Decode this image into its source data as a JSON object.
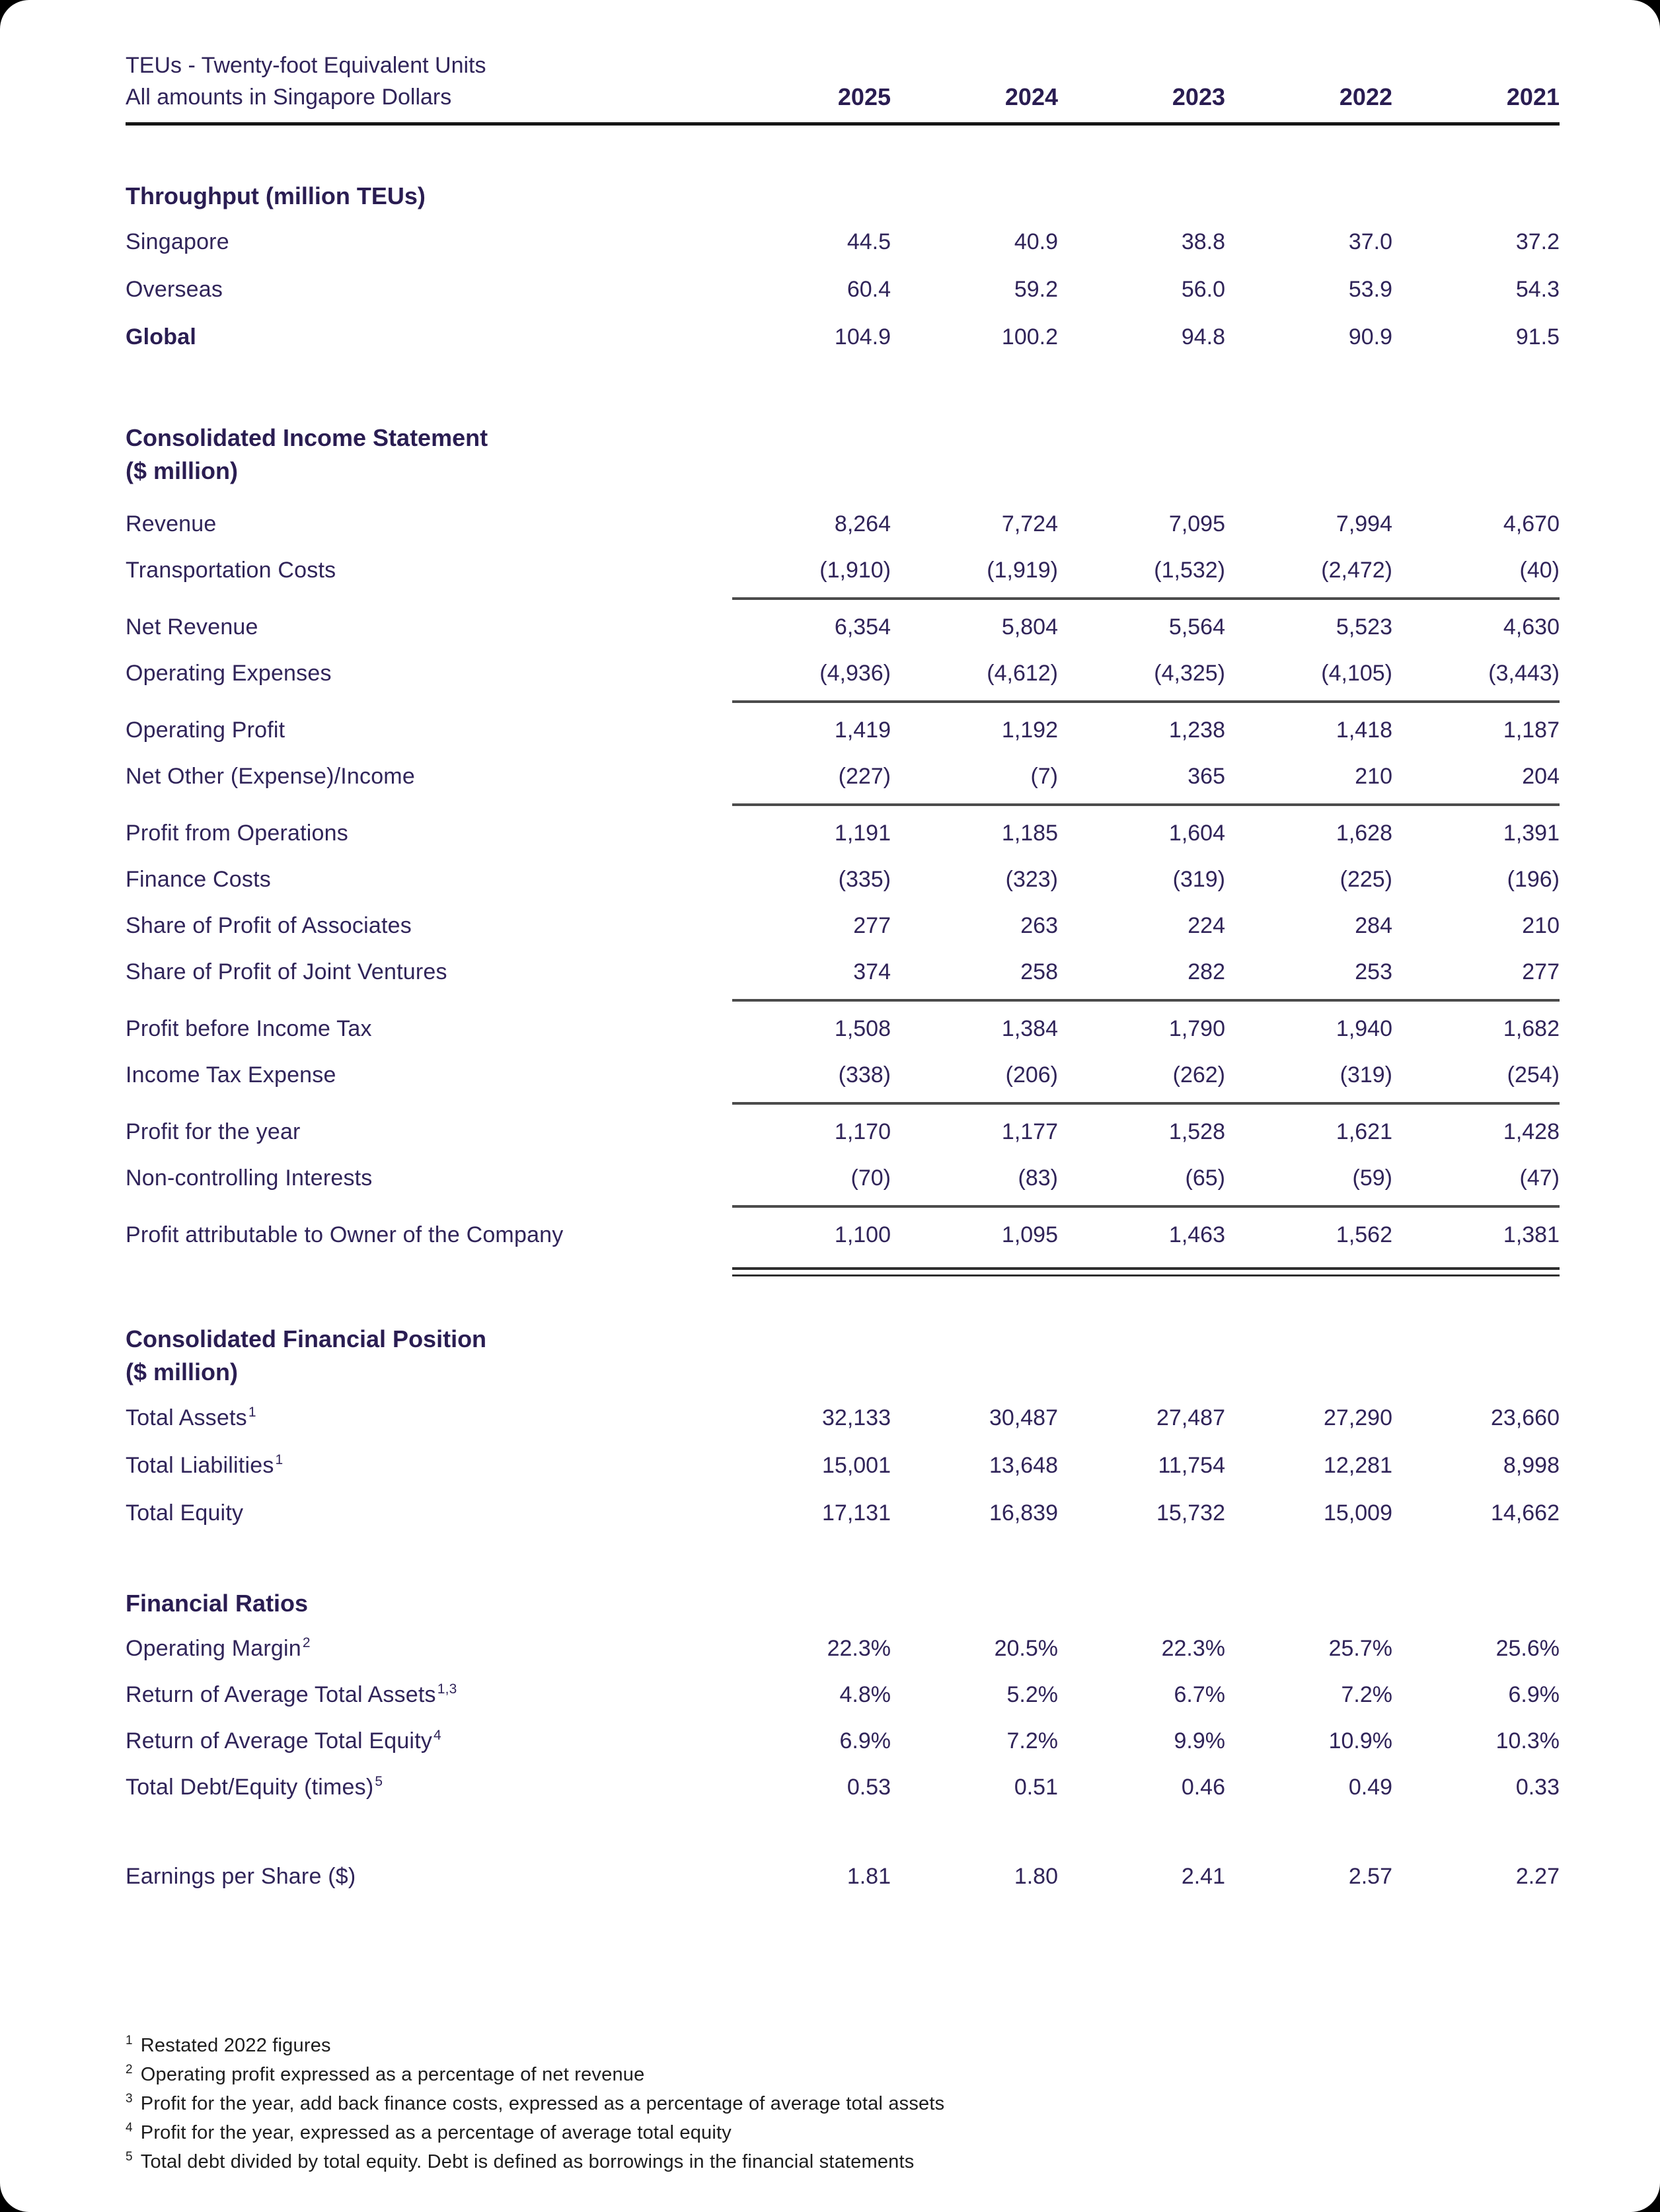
{
  "page": {
    "meta_line1": "TEUs - Twenty-foot Equivalent Units",
    "meta_line2": "All amounts in Singapore Dollars",
    "years": [
      "2025",
      "2024",
      "2023",
      "2022",
      "2021"
    ]
  },
  "colors": {
    "text_ink": "#302459",
    "heading_ink": "#2a1d52",
    "footnote_ink": "#1c1c1c",
    "header_rule": "#161616",
    "subtotal_rule": "#4c4c4c",
    "page_background": "#ffffff",
    "outer_background": "#000000"
  },
  "sections": {
    "throughput": {
      "title": "Throughput (million TEUs)",
      "rows": [
        {
          "label": "Singapore",
          "bold": false,
          "values": [
            "44.5",
            "40.9",
            "38.8",
            "37.0",
            "37.2"
          ]
        },
        {
          "label": "Overseas",
          "bold": false,
          "values": [
            "60.4",
            "59.2",
            "56.0",
            "53.9",
            "54.3"
          ]
        },
        {
          "label": "Global",
          "bold": true,
          "values": [
            "104.9",
            "100.2",
            "94.8",
            "90.9",
            "91.5"
          ]
        }
      ]
    },
    "income": {
      "title": "Consolidated Income Statement",
      "subtitle": "($ million)",
      "rows": [
        {
          "label": "Revenue",
          "bold": false,
          "values": [
            "8,264",
            "7,724",
            "7,095",
            "7,994",
            "4,670"
          ]
        },
        {
          "label": "Transportation Costs",
          "bold": false,
          "values": [
            "(1,910)",
            "(1,919)",
            "(1,532)",
            "(2,472)",
            "(40)"
          ],
          "rule": "single"
        },
        {
          "label": "Net Revenue",
          "bold": false,
          "values": [
            "6,354",
            "5,804",
            "5,564",
            "5,523",
            "4,630"
          ]
        },
        {
          "label": "Operating Expenses",
          "bold": false,
          "values": [
            "(4,936)",
            "(4,612)",
            "(4,325)",
            "(4,105)",
            "(3,443)"
          ],
          "rule": "single"
        },
        {
          "label": "Operating Profit",
          "bold": false,
          "values": [
            "1,419",
            "1,192",
            "1,238",
            "1,418",
            "1,187"
          ]
        },
        {
          "label": "Net Other (Expense)/Income",
          "bold": false,
          "values": [
            "(227)",
            "(7)",
            "365",
            "210",
            "204"
          ],
          "rule": "single"
        },
        {
          "label": "Profit from Operations",
          "bold": false,
          "values": [
            "1,191",
            "1,185",
            "1,604",
            "1,628",
            "1,391"
          ]
        },
        {
          "label": "Finance Costs",
          "bold": false,
          "values": [
            "(335)",
            "(323)",
            "(319)",
            "(225)",
            "(196)"
          ]
        },
        {
          "label": "Share of Profit of Associates",
          "bold": false,
          "values": [
            "277",
            "263",
            "224",
            "284",
            "210"
          ]
        },
        {
          "label": "Share of Profit of Joint Ventures",
          "bold": false,
          "values": [
            "374",
            "258",
            "282",
            "253",
            "277"
          ],
          "rule": "single"
        },
        {
          "label": "Profit before Income Tax",
          "bold": false,
          "values": [
            "1,508",
            "1,384",
            "1,790",
            "1,940",
            "1,682"
          ]
        },
        {
          "label": "Income Tax Expense",
          "bold": false,
          "values": [
            "(338)",
            "(206)",
            "(262)",
            "(319)",
            "(254)"
          ],
          "rule": "single"
        },
        {
          "label": "Profit for the year",
          "bold": false,
          "values": [
            "1,170",
            "1,177",
            "1,528",
            "1,621",
            "1,428"
          ]
        },
        {
          "label": "Non-controlling Interests",
          "bold": false,
          "values": [
            "(70)",
            "(83)",
            "(65)",
            "(59)",
            "(47)"
          ],
          "rule": "single"
        },
        {
          "label": "Profit attributable to Owner of the Company",
          "bold": false,
          "values": [
            "1,100",
            "1,095",
            "1,463",
            "1,562",
            "1,381"
          ],
          "rule": "double"
        }
      ]
    },
    "position": {
      "title": "Consolidated Financial Position",
      "subtitle": "($ million)",
      "rows": [
        {
          "label": "Total Assets",
          "sup": "1",
          "bold": false,
          "values": [
            "32,133",
            "30,487",
            "27,487",
            "27,290",
            "23,660"
          ]
        },
        {
          "label": "Total Liabilities",
          "sup": "1",
          "bold": false,
          "values": [
            "15,001",
            "13,648",
            "11,754",
            "12,281",
            "8,998"
          ]
        },
        {
          "label": "Total Equity",
          "bold": false,
          "values": [
            "17,131",
            "16,839",
            "15,732",
            "15,009",
            "14,662"
          ]
        }
      ]
    },
    "ratios": {
      "title": "Financial Ratios",
      "rows": [
        {
          "label": "Operating Margin",
          "sup": "2",
          "bold": false,
          "values": [
            "22.3%",
            "20.5%",
            "22.3%",
            "25.7%",
            "25.6%"
          ]
        },
        {
          "label": "Return of Average Total Assets",
          "sup": "1,3",
          "bold": false,
          "values": [
            "4.8%",
            "5.2%",
            "6.7%",
            "7.2%",
            "6.9%"
          ]
        },
        {
          "label": "Return of Average Total Equity",
          "sup": "4",
          "bold": false,
          "values": [
            "6.9%",
            "7.2%",
            "9.9%",
            "10.9%",
            "10.3%"
          ]
        },
        {
          "label": "Total Debt/Equity (times)",
          "sup": "5",
          "bold": false,
          "values": [
            "0.53",
            "0.51",
            "0.46",
            "0.49",
            "0.33"
          ]
        }
      ]
    },
    "eps": {
      "rows": [
        {
          "label": "Earnings per Share ($)",
          "bold": false,
          "values": [
            "1.81",
            "1.80",
            "2.41",
            "2.57",
            "2.27"
          ]
        }
      ]
    }
  },
  "footnotes": [
    {
      "mark": "1",
      "text": "Restated 2022 figures"
    },
    {
      "mark": "2",
      "text": "Operating profit expressed as a percentage of net revenue"
    },
    {
      "mark": "3",
      "text": "Profit for the year, add back finance costs, expressed as a percentage of average total assets"
    },
    {
      "mark": "4",
      "text": "Profit for the year, expressed as a percentage of average total equity"
    },
    {
      "mark": "5",
      "text": "Total debt divided by total equity. Debt is defined as borrowings in the financial statements"
    }
  ]
}
